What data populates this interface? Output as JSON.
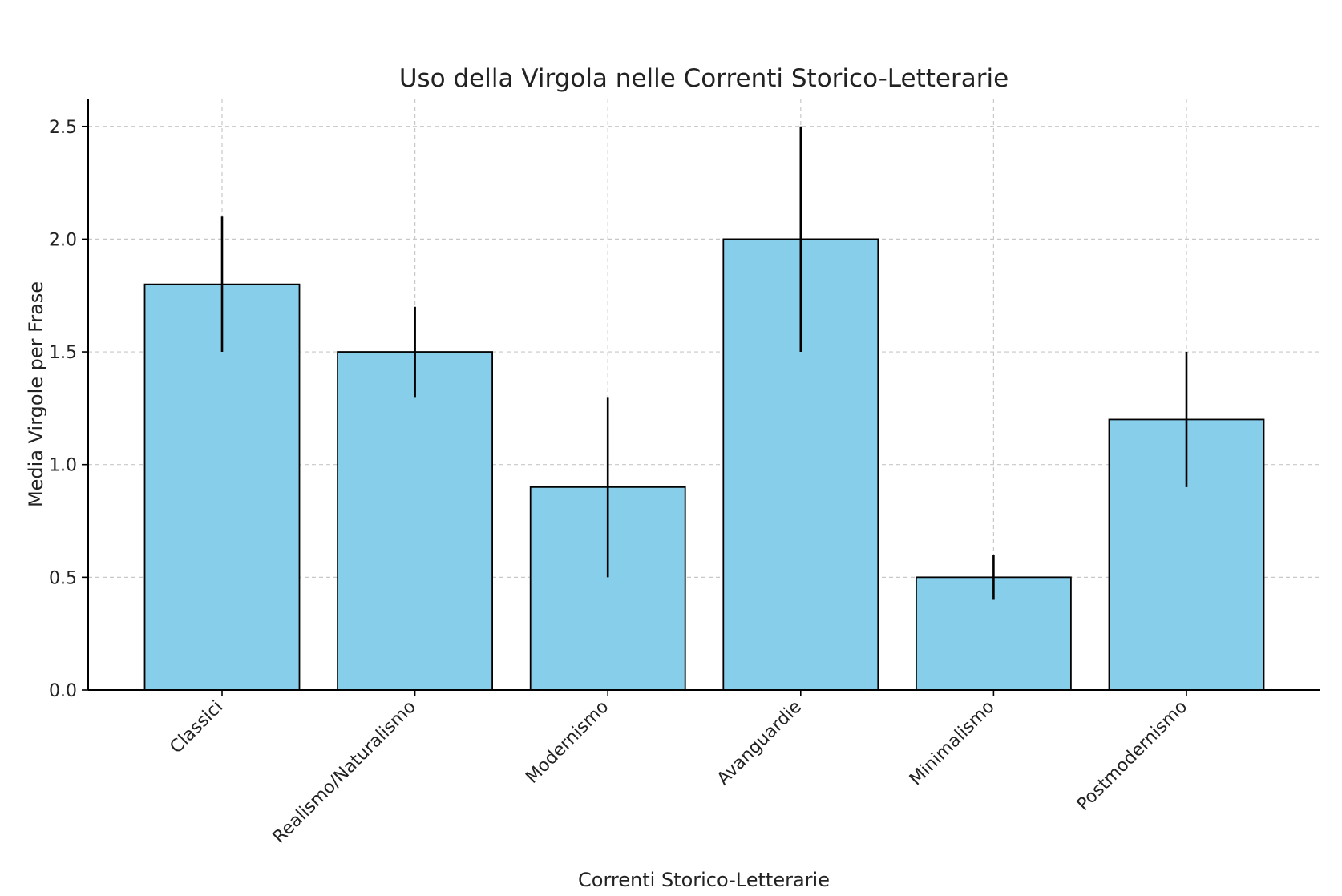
{
  "chart_data": {
    "type": "bar",
    "title": "Uso della Virgola nelle Correnti Storico-Letterarie",
    "xlabel": "Correnti Storico-Letterarie",
    "ylabel": "Media Virgole per Frase",
    "categories": [
      "Classici",
      "Realismo/Naturalismo",
      "Modernismo",
      "Avanguardie",
      "Minimalismo",
      "Postmodernismo"
    ],
    "values": [
      1.8,
      1.5,
      0.9,
      2.0,
      0.5,
      1.2
    ],
    "errors": [
      0.3,
      0.2,
      0.4,
      0.5,
      0.1,
      0.3
    ],
    "ylim": [
      0,
      2.62
    ],
    "yticks": [
      "0.0",
      "0.5",
      "1.0",
      "1.5",
      "2.0",
      "2.5"
    ],
    "grid": true,
    "bar_color": "#87CEEB",
    "edge_color": "#000000"
  }
}
